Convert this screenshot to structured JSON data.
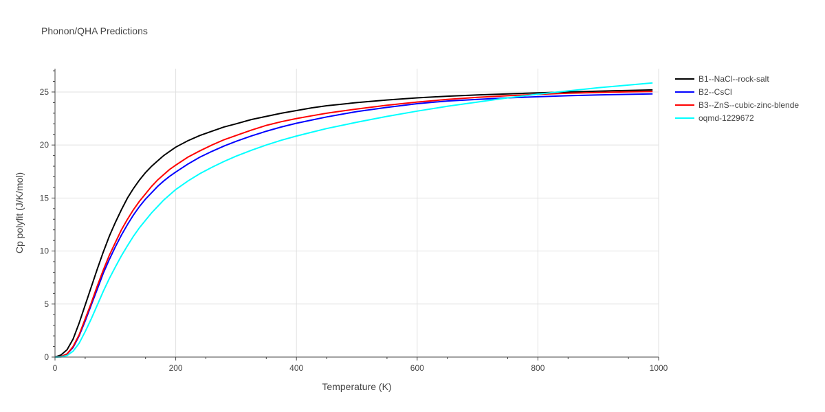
{
  "chart_data": {
    "type": "line",
    "title": "Phonon/QHA Predictions",
    "xlabel": "Temperature (K)",
    "ylabel": "Cp polyfit (J/K/mol)",
    "xlim": [
      0,
      1000
    ],
    "ylim": [
      0,
      27.2
    ],
    "xticks": [
      0,
      200,
      400,
      600,
      800,
      1000
    ],
    "yticks": [
      0,
      5,
      10,
      15,
      20,
      25
    ],
    "grid": true,
    "legend_position": "top-right",
    "series": [
      {
        "name": "B1--NaCl--rock-salt",
        "color": "#000000",
        "x": [
          0,
          10,
          20,
          30,
          40,
          50,
          60,
          70,
          80,
          90,
          100,
          110,
          120,
          130,
          140,
          150,
          160,
          170,
          180,
          190,
          200,
          220,
          240,
          260,
          280,
          300,
          325,
          350,
          375,
          400,
          425,
          450,
          475,
          500,
          550,
          600,
          650,
          700,
          750,
          800,
          850,
          900,
          950,
          990
        ],
        "y": [
          0,
          0.2,
          0.7,
          1.7,
          3.2,
          4.9,
          6.6,
          8.3,
          9.9,
          11.4,
          12.7,
          13.9,
          15.0,
          15.9,
          16.7,
          17.4,
          18.0,
          18.5,
          19.0,
          19.4,
          19.8,
          20.4,
          20.9,
          21.3,
          21.7,
          22.0,
          22.4,
          22.7,
          23.0,
          23.25,
          23.5,
          23.7,
          23.85,
          24.0,
          24.25,
          24.45,
          24.6,
          24.72,
          24.82,
          24.92,
          25.0,
          25.08,
          25.15,
          25.2
        ]
      },
      {
        "name": "B2--CsCl",
        "color": "#0000ff",
        "x": [
          0,
          10,
          20,
          30,
          40,
          50,
          60,
          70,
          80,
          90,
          100,
          110,
          120,
          130,
          140,
          150,
          160,
          170,
          180,
          190,
          200,
          220,
          240,
          260,
          280,
          300,
          325,
          350,
          375,
          400,
          425,
          450,
          475,
          500,
          550,
          600,
          650,
          700,
          750,
          800,
          850,
          900,
          950,
          990
        ],
        "y": [
          0,
          0.05,
          0.3,
          0.9,
          2.0,
          3.4,
          4.9,
          6.4,
          7.9,
          9.2,
          10.4,
          11.5,
          12.5,
          13.4,
          14.2,
          14.9,
          15.5,
          16.1,
          16.6,
          17.05,
          17.45,
          18.2,
          18.85,
          19.4,
          19.9,
          20.35,
          20.85,
          21.3,
          21.7,
          22.05,
          22.35,
          22.65,
          22.9,
          23.15,
          23.55,
          23.9,
          24.15,
          24.3,
          24.45,
          24.55,
          24.65,
          24.72,
          24.78,
          24.82
        ]
      },
      {
        "name": "B3--ZnS--cubic-zinc-blende",
        "color": "#ff0000",
        "x": [
          0,
          10,
          20,
          30,
          40,
          50,
          60,
          70,
          80,
          90,
          100,
          110,
          120,
          130,
          140,
          150,
          160,
          170,
          180,
          190,
          200,
          220,
          240,
          260,
          280,
          300,
          325,
          350,
          375,
          400,
          425,
          450,
          475,
          500,
          550,
          600,
          650,
          700,
          750,
          800,
          850,
          900,
          950,
          990
        ],
        "y": [
          0,
          0.05,
          0.3,
          1.0,
          2.1,
          3.6,
          5.1,
          6.7,
          8.2,
          9.6,
          10.8,
          12.0,
          13.0,
          13.9,
          14.7,
          15.4,
          16.1,
          16.7,
          17.2,
          17.7,
          18.1,
          18.85,
          19.45,
          20.0,
          20.5,
          20.9,
          21.4,
          21.85,
          22.2,
          22.5,
          22.75,
          23.0,
          23.2,
          23.4,
          23.75,
          24.05,
          24.3,
          24.5,
          24.65,
          24.78,
          24.88,
          24.95,
          25.02,
          25.05
        ]
      },
      {
        "name": "oqmd-1229672",
        "color": "#00ffff",
        "x": [
          0,
          10,
          20,
          30,
          40,
          50,
          60,
          70,
          80,
          90,
          100,
          110,
          120,
          130,
          140,
          150,
          160,
          170,
          180,
          190,
          200,
          220,
          240,
          260,
          280,
          300,
          325,
          350,
          375,
          400,
          425,
          450,
          475,
          500,
          550,
          600,
          650,
          700,
          750,
          800,
          850,
          900,
          950,
          990
        ],
        "y": [
          0,
          0.02,
          0.15,
          0.55,
          1.3,
          2.4,
          3.6,
          4.9,
          6.2,
          7.4,
          8.5,
          9.55,
          10.5,
          11.4,
          12.2,
          12.9,
          13.6,
          14.2,
          14.8,
          15.3,
          15.8,
          16.6,
          17.3,
          17.9,
          18.45,
          18.95,
          19.5,
          20.0,
          20.45,
          20.85,
          21.2,
          21.55,
          21.85,
          22.15,
          22.7,
          23.2,
          23.65,
          24.05,
          24.45,
          24.8,
          25.1,
          25.4,
          25.65,
          25.85
        ]
      }
    ]
  }
}
